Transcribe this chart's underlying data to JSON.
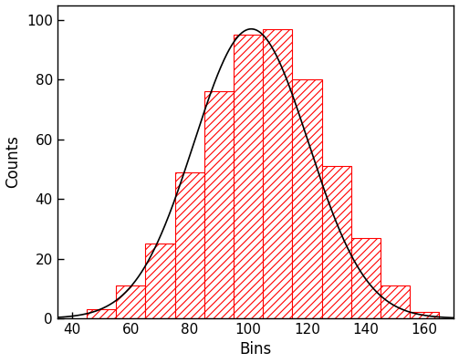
{
  "bar_left_edges": [
    45,
    55,
    65,
    75,
    85,
    95,
    105,
    115,
    125,
    135,
    145,
    155
  ],
  "bar_heights": [
    3,
    11,
    25,
    49,
    76,
    95,
    97,
    80,
    51,
    27,
    11,
    2
  ],
  "bin_width": 10,
  "bar_edge_color": "#ff0000",
  "hatch": "////",
  "hatch_color": "#ff0000",
  "hatch_linewidth": 0.8,
  "curve_color": "#000000",
  "curve_linewidth": 1.2,
  "xlabel": "Bins",
  "ylabel": "Counts",
  "xlim": [
    35,
    170
  ],
  "ylim": [
    0,
    105
  ],
  "xticks": [
    40,
    60,
    80,
    100,
    120,
    140,
    160
  ],
  "yticks": [
    0,
    20,
    40,
    60,
    80,
    100
  ],
  "figsize": [
    5.03,
    3.98
  ],
  "dpi": 100,
  "gauss_mu": 101.0,
  "gauss_sigma": 19.5,
  "gauss_amplitude": 97.0,
  "background_color": "#ffffff"
}
